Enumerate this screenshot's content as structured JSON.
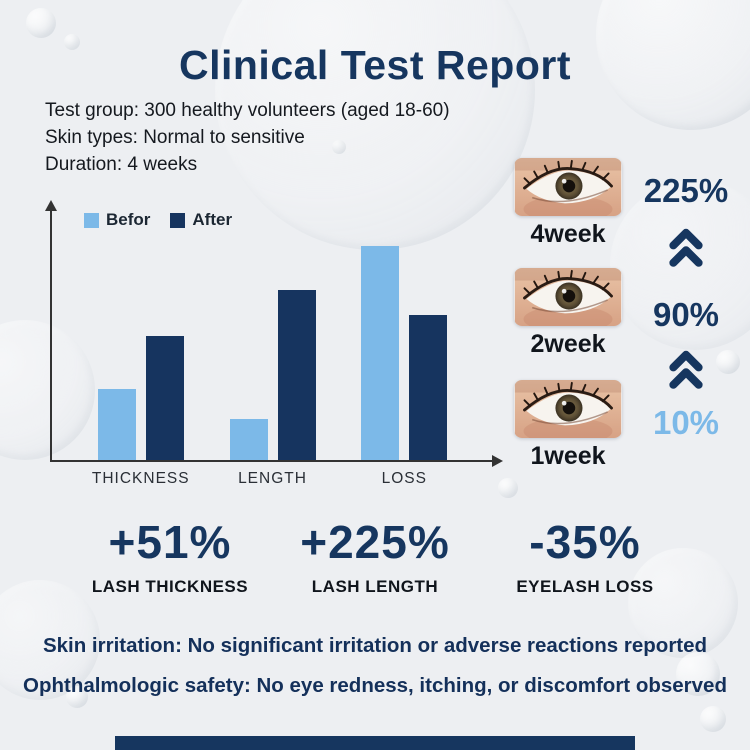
{
  "title": "Clinical Test Report",
  "info_lines": [
    "Test group: 300 healthy volunteers (aged 18-60)",
    "Skin types: Normal to sensitive",
    "Duration: 4 weeks"
  ],
  "chart_data": {
    "type": "bar",
    "categories": [
      "THICKNESS",
      "LENGTH",
      "LOSS"
    ],
    "series": [
      {
        "name": "Befor",
        "color": "#7cb9e8",
        "values": [
          31,
          18,
          93
        ]
      },
      {
        "name": "After",
        "color": "#16345f",
        "values": [
          54,
          74,
          63
        ]
      }
    ],
    "ylim": [
      0,
      100
    ],
    "grid": false,
    "legend_position": "top-left"
  },
  "timeline": {
    "items": [
      {
        "week": "4week",
        "percent": "225%",
        "color": "#16365f"
      },
      {
        "week": "2week",
        "percent": "90%",
        "color": "#16365f"
      },
      {
        "week": "1week",
        "percent": "10%",
        "color": "#7cb9e8"
      }
    ]
  },
  "stats": [
    {
      "value": "+51%",
      "label": "LASH THICKNESS"
    },
    {
      "value": "+225%",
      "label": "LASH LENGTH"
    },
    {
      "value": "-35%",
      "label": "EYELASH LOSS"
    }
  ],
  "footer_lines": [
    "Skin irritation: No significant irritation or adverse reactions reported",
    "Ophthalmologic safety: No eye redness, itching, or discomfort observed"
  ],
  "colors": {
    "navy": "#16365f",
    "light_blue": "#7cb9e8",
    "background": "#edeff2",
    "axis": "#333333",
    "text_dark": "#10151c"
  }
}
